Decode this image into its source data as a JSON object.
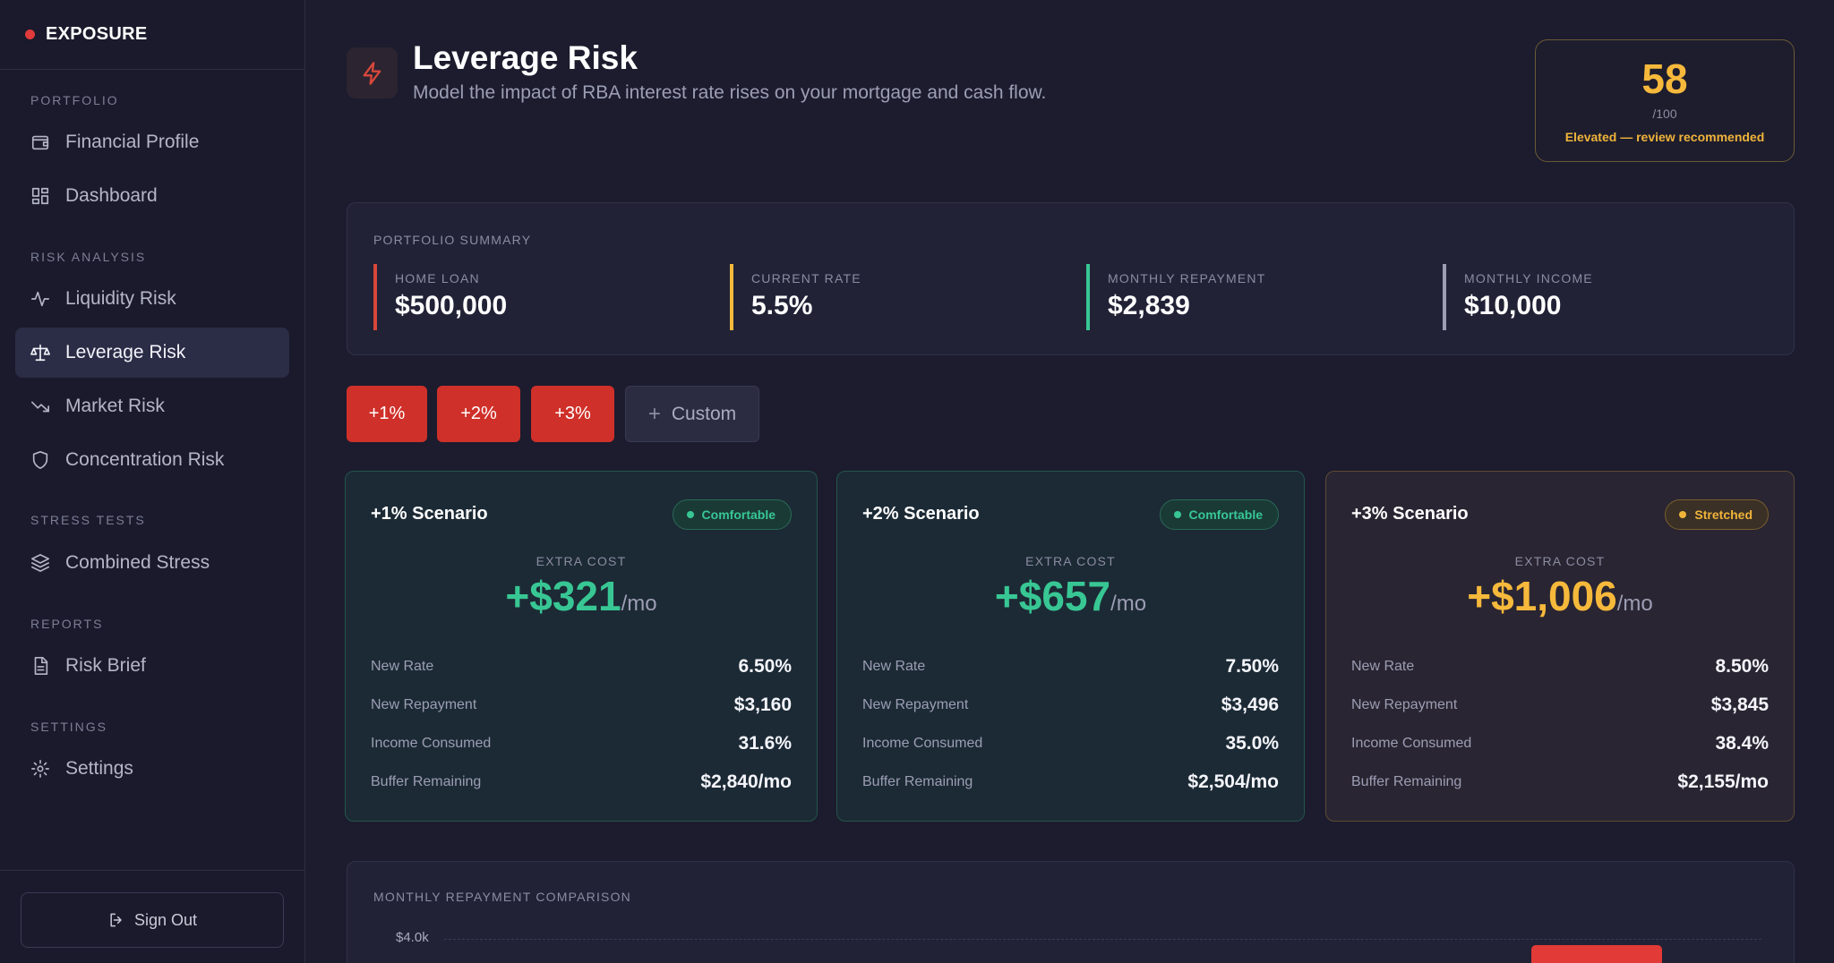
{
  "brand": {
    "name": "EXPOSURE",
    "dot_color": "#e03a3a"
  },
  "sidebar": {
    "sections": [
      {
        "label": "PORTFOLIO"
      },
      {
        "label": "RISK ANALYSIS"
      },
      {
        "label": "STRESS TESTS"
      },
      {
        "label": "REPORTS"
      },
      {
        "label": "SETTINGS"
      }
    ],
    "items": [
      {
        "label": "Financial Profile",
        "icon": "wallet-icon"
      },
      {
        "label": "Dashboard",
        "icon": "grid-icon"
      },
      {
        "label": "Liquidity Risk",
        "icon": "pulse-icon"
      },
      {
        "label": "Leverage Risk",
        "icon": "scale-icon",
        "active": true
      },
      {
        "label": "Market Risk",
        "icon": "trend-down-icon"
      },
      {
        "label": "Concentration Risk",
        "icon": "shield-icon"
      },
      {
        "label": "Combined Stress",
        "icon": "layers-icon"
      },
      {
        "label": "Risk Brief",
        "icon": "document-icon"
      },
      {
        "label": "Settings",
        "icon": "gear-icon"
      }
    ],
    "signout_label": "Sign Out"
  },
  "header": {
    "title": "Leverage Risk",
    "subtitle": "Model the impact of RBA interest rate rises on your mortgage and cash flow.",
    "icon": "bolt-icon"
  },
  "score": {
    "value": "58",
    "max": "/100",
    "note": "Elevated — review recommended",
    "color": "#f6b93b"
  },
  "summary": {
    "title": "PORTFOLIO SUMMARY",
    "metrics": [
      {
        "label": "HOME LOAN",
        "value": "$500,000",
        "accent": "#d7473b"
      },
      {
        "label": "CURRENT RATE",
        "value": "5.5%",
        "accent": "#f6b93b"
      },
      {
        "label": "MONTHLY REPAYMENT",
        "value": "$2,839",
        "accent": "#38c794"
      },
      {
        "label": "MONTHLY INCOME",
        "value": "$10,000",
        "accent": "#9c9eb4"
      }
    ]
  },
  "scenario_buttons": [
    "+1%",
    "+2%",
    "+3%"
  ],
  "custom_button": {
    "plus": "+",
    "label": "Custom"
  },
  "scenarios": [
    {
      "title": "+1% Scenario",
      "status": "Comfortable",
      "tone": "green",
      "cost_label": "EXTRA COST",
      "cost": "+$321",
      "unit": "/mo",
      "rows": [
        {
          "label": "New Rate",
          "value": "6.50%"
        },
        {
          "label": "New Repayment",
          "value": "$3,160"
        },
        {
          "label": "Income Consumed",
          "value": "31.6%"
        },
        {
          "label": "Buffer Remaining",
          "value": "$2,840/mo"
        }
      ]
    },
    {
      "title": "+2% Scenario",
      "status": "Comfortable",
      "tone": "green",
      "cost_label": "EXTRA COST",
      "cost": "+$657",
      "unit": "/mo",
      "rows": [
        {
          "label": "New Rate",
          "value": "7.50%"
        },
        {
          "label": "New Repayment",
          "value": "$3,496"
        },
        {
          "label": "Income Consumed",
          "value": "35.0%"
        },
        {
          "label": "Buffer Remaining",
          "value": "$2,504/mo"
        }
      ]
    },
    {
      "title": "+3% Scenario",
      "status": "Stretched",
      "tone": "amber",
      "cost_label": "EXTRA COST",
      "cost": "+$1,006",
      "unit": "/mo",
      "rows": [
        {
          "label": "New Rate",
          "value": "8.50%"
        },
        {
          "label": "New Repayment",
          "value": "$3,845"
        },
        {
          "label": "Income Consumed",
          "value": "38.4%"
        },
        {
          "label": "Buffer Remaining",
          "value": "$2,155/mo"
        }
      ]
    }
  ],
  "chart": {
    "title": "MONTHLY REPAYMENT COMPARISON",
    "tick_top": "$4.0k",
    "bar_color": "#e23a36"
  }
}
